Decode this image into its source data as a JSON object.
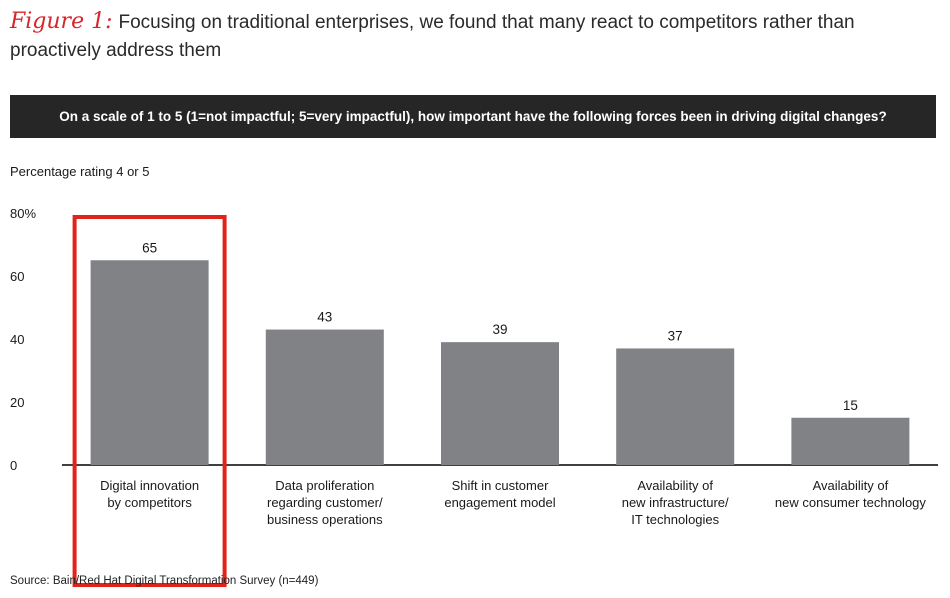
{
  "figure": {
    "label": "Figure 1:",
    "title": "Focusing on traditional enterprises, we found that many react to competitors rather than proactively address them"
  },
  "question": "On a scale of 1 to 5 (1=not impactful; 5=very impactful), how important have the following forces been in driving digital changes?",
  "source": "Source: Bain/Red Hat Digital Transformation Survey (n=449)",
  "colors": {
    "bar": "#808285",
    "highlight": "#e2231a",
    "axis": "#000000",
    "question_bg": "#262626"
  },
  "chart_data": {
    "type": "bar",
    "ylabel": "Percentage rating 4 or 5",
    "ylim": [
      0,
      80
    ],
    "yticks": [
      "0",
      "20",
      "40",
      "60",
      "80%"
    ],
    "ytick_values": [
      0,
      20,
      40,
      60,
      80
    ],
    "categories": [
      [
        "Digital innovation",
        "by competitors"
      ],
      [
        "Data proliferation",
        "regarding customer/",
        "business operations"
      ],
      [
        "Shift in customer",
        "engagement model"
      ],
      [
        "Availability of",
        "new infrastructure/",
        "IT technologies"
      ],
      [
        "Availability of",
        "new consumer technology"
      ]
    ],
    "values": [
      65,
      43,
      39,
      37,
      15
    ],
    "data_labels": [
      "65",
      "43",
      "39",
      "37",
      "15"
    ],
    "highlighted_index": 0,
    "grid": false
  }
}
